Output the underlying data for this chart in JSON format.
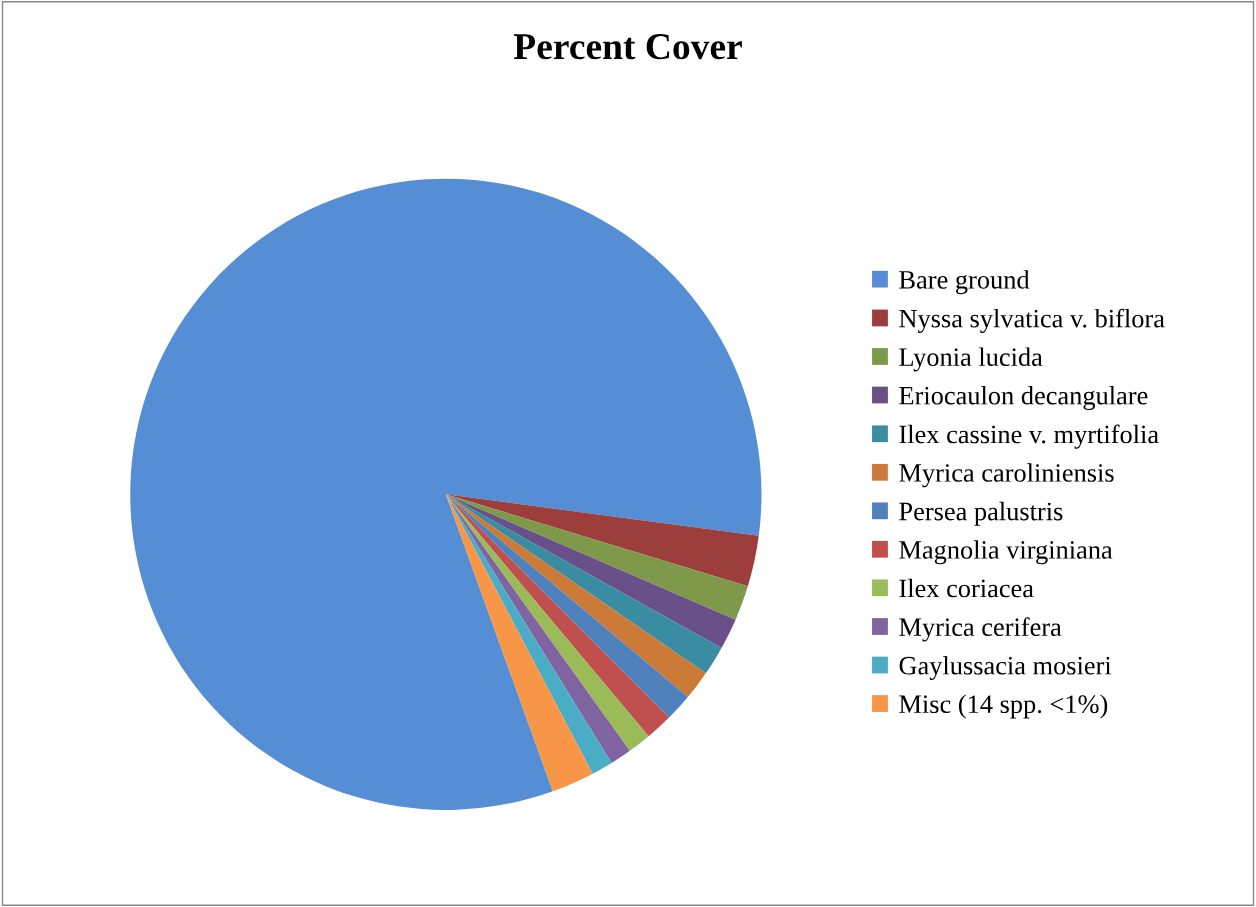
{
  "chart_data": {
    "type": "pie",
    "title": "Percent Cover",
    "categories": [
      "Bare ground",
      "Nyssa sylvatica v. biflora",
      "Lyonia lucida",
      "Eriocaulon decangulare",
      "Ilex cassine v. myrtifolia",
      "Myrica caroliniensis",
      "Persea palustris",
      "Magnolia virginiana",
      "Ilex coriacea",
      "Myrica cerifera",
      "Gaylussacia mosieri",
      "Misc (14 spp. <1%)"
    ],
    "values": [
      82.6,
      2.6,
      1.8,
      1.6,
      1.5,
      1.5,
      1.4,
      1.4,
      1.2,
      1.1,
      1.1,
      2.2
    ],
    "colors": [
      "#558ed5",
      "#9c3f3c",
      "#7f994a",
      "#6a5089",
      "#3a8ca3",
      "#cc7a37",
      "#4f81bd",
      "#c0504d",
      "#9bbb59",
      "#8064a2",
      "#4bacc6",
      "#f79646"
    ],
    "legend": "right"
  }
}
